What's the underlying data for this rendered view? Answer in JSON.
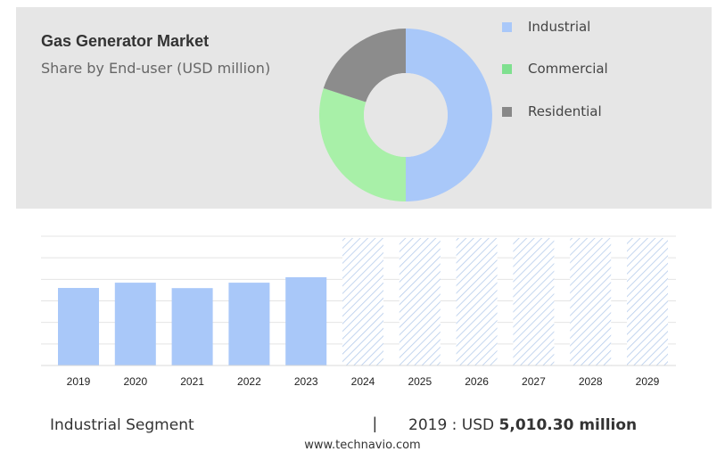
{
  "title": "Gas Generator Market",
  "subtitle": "Share by End-user (USD million)",
  "colors": {
    "industrial": "#a9c8f9",
    "commercial": "#a8f0a8",
    "residential": "#8c8c8c",
    "forecast_hatch": "#b5ccec",
    "panel_bg": "#e6e6e6"
  },
  "legend": [
    {
      "label": "Industrial",
      "color": "#a9c8f9"
    },
    {
      "label": "Commercial",
      "color": "#7fe08f"
    },
    {
      "label": "Residential",
      "color": "#888888"
    }
  ],
  "chart_data": [
    {
      "type": "pie",
      "donut": true,
      "labels": [
        "Industrial",
        "Commercial",
        "Residential"
      ],
      "values": [
        50,
        30,
        20
      ],
      "colors": [
        "#a9c8f9",
        "#a8f0a8",
        "#8c8c8c"
      ]
    },
    {
      "type": "bar",
      "categories": [
        "2019",
        "2020",
        "2021",
        "2022",
        "2023",
        "2024",
        "2025",
        "2026",
        "2027",
        "2028",
        "2029"
      ],
      "series": [
        {
          "values": [
            5010.3,
            5350,
            5000,
            5350,
            5700,
            null,
            null,
            null,
            null,
            null,
            null
          ]
        }
      ],
      "forecast_categories": [
        "2024",
        "2025",
        "2026",
        "2027",
        "2028",
        "2029"
      ],
      "ylim": [
        0,
        8350
      ],
      "grid": true,
      "xlabel": "",
      "ylabel": ""
    }
  ],
  "footer": {
    "segment": "Industrial Segment",
    "separator": "|",
    "year_label": "2019 : USD",
    "value": "5,010.30 million"
  },
  "source": "www.technavio.com"
}
